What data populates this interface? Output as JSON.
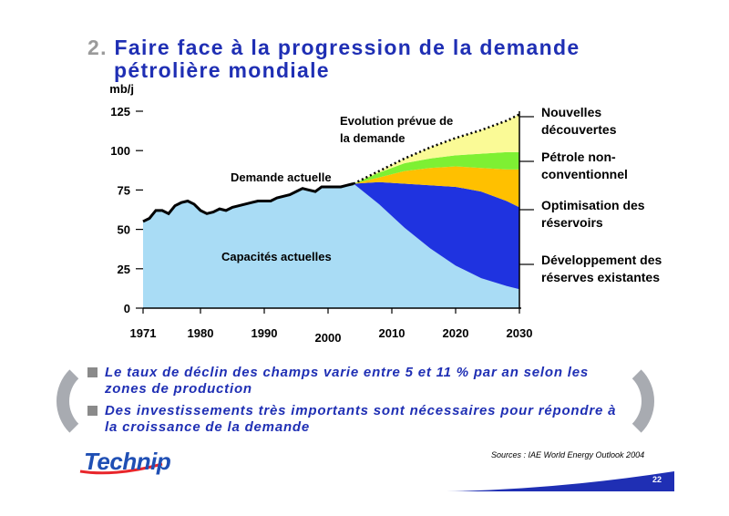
{
  "slide": {
    "number": "2.",
    "title_line1": "Faire face à la progression de la demande",
    "title_line2": "pétrolière mondiale",
    "bullets": [
      {
        "line1": "Le taux de déclin des champs varie entre 5 et 11 % par an selon les",
        "line2": "zones de production"
      },
      {
        "line1": "Des investissements très importants sont nécessaires pour répondre à",
        "line2": "la croissance de la demande"
      }
    ],
    "logo": "Technip",
    "source": "Sources : IAE  World Energy Outlook 2004",
    "page": "22"
  },
  "colors": {
    "title": "#1f2fb4",
    "capacites": "#a9dcf5",
    "developpement": "#1f33e0",
    "optimisation": "#ffc000",
    "non_conventionnel": "#7ef033",
    "nouvelles": "#fafa96"
  },
  "chart_data": {
    "type": "area",
    "ylabel": "mb/j",
    "ylim": [
      0,
      125
    ],
    "yticks": [
      "0",
      "25",
      "50",
      "75",
      "100",
      "125"
    ],
    "xticks": [
      "1971",
      "1980",
      "1990",
      "2000",
      "2010",
      "2020",
      "2030"
    ],
    "xlim": [
      1971,
      2030
    ],
    "grid": false,
    "annotations": {
      "demande_actuelle": "Demande actuelle",
      "evolution_line1": "Evolution prévue de",
      "evolution_line2": "la demande",
      "capacites": "Capacités actuelles"
    },
    "legend": [
      {
        "key": "nouvelles",
        "line1": "Nouvelles",
        "line2": "découvertes"
      },
      {
        "key": "non_conventionnel",
        "line1": "Pétrole non-",
        "line2": "conventionnel"
      },
      {
        "key": "optimisation",
        "line1": "Optimisation des",
        "line2": "réservoirs"
      },
      {
        "key": "developpement",
        "line1": "Développement des",
        "line2": "réserves existantes"
      }
    ],
    "history": {
      "x": [
        1971,
        1972,
        1973,
        1974,
        1975,
        1976,
        1977,
        1978,
        1979,
        1980,
        1981,
        1982,
        1983,
        1984,
        1985,
        1986,
        1987,
        1988,
        1989,
        1990,
        1991,
        1992,
        1993,
        1994,
        1995,
        1996,
        1997,
        1998,
        1999,
        2000,
        2001,
        2002,
        2003,
        2004
      ],
      "demand": [
        55,
        57,
        62,
        62,
        60,
        65,
        67,
        68,
        66,
        62,
        60,
        61,
        63,
        62,
        64,
        65,
        66,
        67,
        68,
        68,
        68,
        70,
        71,
        72,
        74,
        76,
        75,
        74,
        77,
        77,
        77,
        77,
        78,
        79
      ]
    },
    "projection": {
      "x": [
        2004,
        2008,
        2012,
        2016,
        2020,
        2024,
        2028,
        2030
      ],
      "capacites_actuelles": [
        79,
        66,
        51,
        38,
        27,
        19,
        14,
        12
      ],
      "developpement_top": [
        79,
        80,
        79,
        78,
        77,
        74,
        68,
        64
      ],
      "optimisation_top": [
        79,
        83,
        87,
        89,
        90,
        89,
        88,
        88
      ],
      "non_conventionnel_top": [
        79,
        86,
        92,
        95,
        97,
        98,
        99,
        99
      ],
      "demande_prevue": [
        79,
        87,
        95,
        102,
        108,
        113,
        119,
        123
      ]
    }
  }
}
